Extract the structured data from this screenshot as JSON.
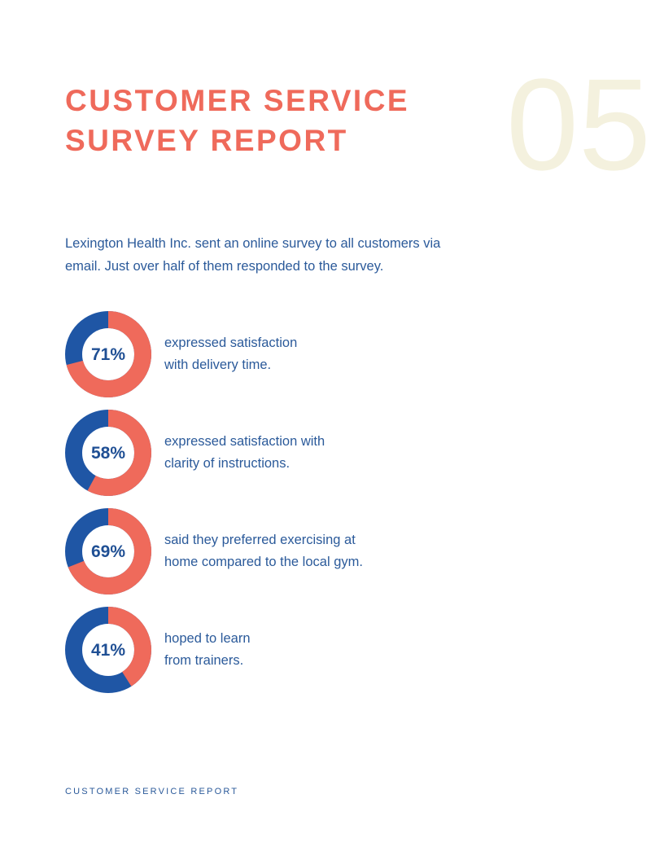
{
  "header": {
    "title": [
      "CUSTOMER SERVICE",
      "SURVEY REPORT"
    ],
    "page_number": "05"
  },
  "intro": [
    "Lexington Health Inc. sent an online survey to all customers via",
    "email. Just over half of them responded to the survey."
  ],
  "stats": [
    {
      "percent": 71,
      "percent_label": "71%",
      "lines": [
        "expressed satisfaction",
        "with delivery time."
      ]
    },
    {
      "percent": 58,
      "percent_label": "58%",
      "lines": [
        "expressed satisfaction with",
        "clarity of instructions."
      ]
    },
    {
      "percent": 69,
      "percent_label": "69%",
      "lines": [
        "said they preferred exercising at",
        "home compared to the local gym."
      ]
    },
    {
      "percent": 41,
      "percent_label": "41%",
      "lines": [
        "hoped to learn",
        "from trainers."
      ]
    }
  ],
  "footer": "CUSTOMER SERVICE REPORT"
}
